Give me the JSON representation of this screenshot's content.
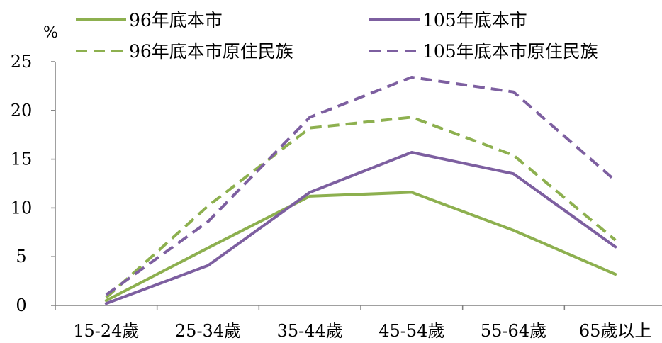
{
  "chart_data": {
    "type": "line",
    "title": "",
    "xlabel": "",
    "ylabel": "%",
    "ylim": [
      0,
      25
    ],
    "yticks": [
      0,
      5,
      10,
      15,
      20,
      25
    ],
    "grid": false,
    "legend_position": "top",
    "categories": [
      "15-24歲",
      "25-34歲",
      "35-44歲",
      "45-54歲",
      "55-64歲",
      "65歲以上"
    ],
    "series": [
      {
        "name": "96年底本市",
        "values": [
          0.5,
          5.9,
          11.2,
          11.6,
          7.7,
          3.2
        ],
        "color": "#8db04f",
        "dash": "solid"
      },
      {
        "name": "105年底本市",
        "values": [
          0.2,
          4.1,
          11.6,
          15.7,
          13.5,
          6.0
        ],
        "color": "#7d5fa0",
        "dash": "solid"
      },
      {
        "name": "96年底本市原住民族",
        "values": [
          0.8,
          10.2,
          18.2,
          19.3,
          15.4,
          6.7
        ],
        "color": "#8db04f",
        "dash": "dashed"
      },
      {
        "name": "105年底本市原住民族",
        "values": [
          1.1,
          8.6,
          19.3,
          23.4,
          21.9,
          12.8
        ],
        "color": "#7d5fa0",
        "dash": "dashed"
      }
    ]
  }
}
